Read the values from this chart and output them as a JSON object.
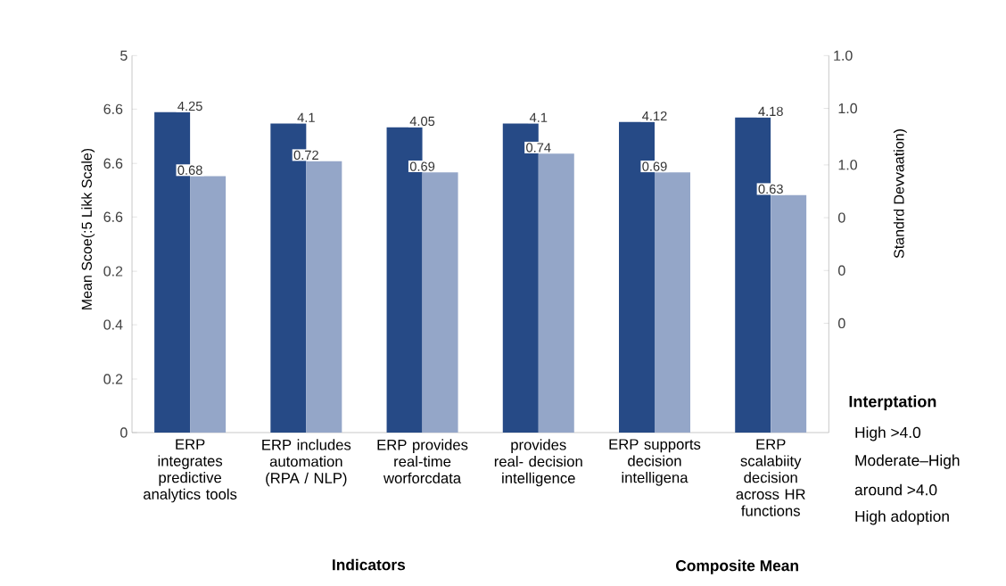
{
  "chart_data": {
    "type": "bar",
    "ylabel": "Mean Scoe(:5 Likk Scale)",
    "y2label": "Standrd Devvaation)",
    "legend_title": "Interptation",
    "categories": [
      "ERP integrates predictive analytics tools",
      "ERP includes automation (RPA / NLP)",
      "ERP provides real-time worforcdata",
      "provides real- decision intelligence",
      "ERP supports decision intelligena",
      "ERP scalabiity decision across HR functions"
    ],
    "series": [
      {
        "color": "#264a86",
        "values": [
          4.25,
          4.1,
          4.05,
          4.1,
          4.12,
          4.18
        ]
      },
      {
        "color": "#94a6c8",
        "axis": "y2",
        "values": [
          0.68,
          0.72,
          0.69,
          0.74,
          0.69,
          0.63
        ]
      }
    ],
    "data_labels": true,
    "ylim": [
      0,
      5
    ],
    "yticks": [
      0,
      {
        "value": 0.71,
        "label": null
      },
      {
        "value": 1.43,
        "label": null
      },
      {
        "value": 2.14,
        "label": null
      },
      {
        "value": 2.86,
        "label": null
      },
      {
        "value": 3.57,
        "label": null
      },
      {
        "value": 4.29,
        "label": null
      },
      5
    ],
    "y2lim": [
      0,
      1
    ],
    "y2ticks": [
      {
        "value": 0.29,
        "label": null
      },
      {
        "value": 0.43,
        "label": null
      },
      {
        "value": 0.57,
        "label": null
      },
      {
        "value": 0.71,
        "label": null
      },
      {
        "value": 0.86,
        "label": null
      },
      {
        "value": 1,
        "label": "1.0"
      }
    ],
    "annotations": [
      "Indicators",
      "Composite Mean",
      "High >4.0",
      "Moderate–High",
      "around >4.0",
      "High adoption",
      "0.2",
      "0.4",
      "0.2",
      "6.6",
      "6.6",
      "6.6",
      "0",
      "0",
      "0",
      "1.0",
      "1.0"
    ]
  }
}
